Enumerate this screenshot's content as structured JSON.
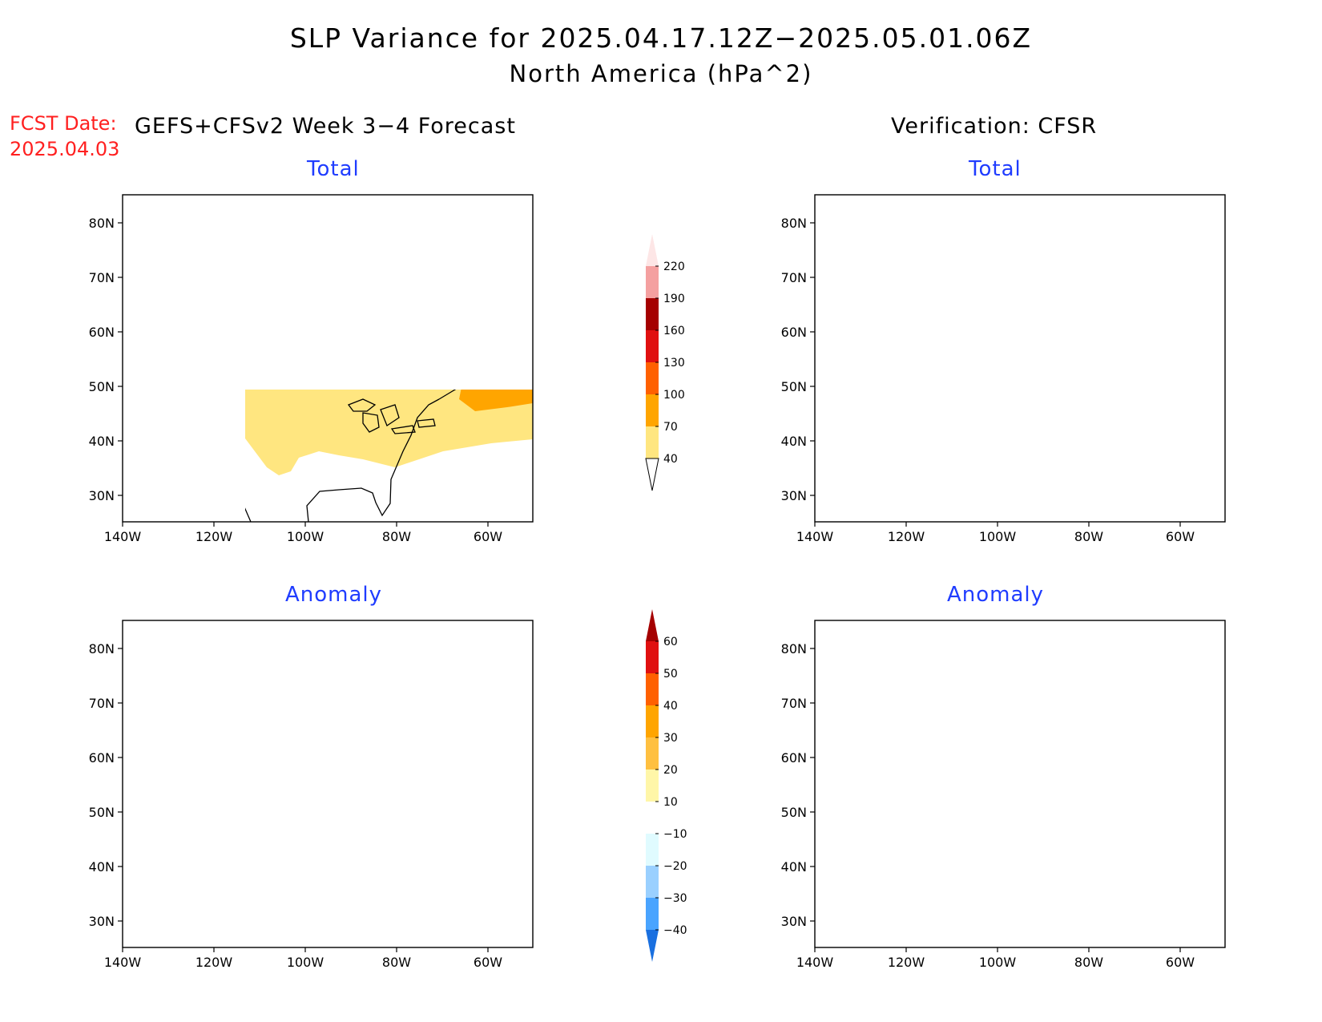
{
  "header": {
    "title": "SLP Variance for 2025.04.17.12Z−2025.05.01.06Z",
    "subtitle": "North America (hPa^2)",
    "fcst_label": "FCST Date:",
    "fcst_date": "2025.04.03",
    "left_heading": "GEFS+CFSv2 Week 3−4 Forecast",
    "right_heading": "Verification: CFSR"
  },
  "panels": {
    "fcst_total": {
      "title": "Total"
    },
    "obs_total": {
      "title": "Total"
    },
    "fcst_anom": {
      "title": "Anomaly"
    },
    "obs_anom": {
      "title": "Anomaly"
    }
  },
  "axes": {
    "lat_labels": [
      "80N",
      "70N",
      "60N",
      "50N",
      "40N",
      "30N"
    ],
    "lon_labels": [
      "140W",
      "120W",
      "100W",
      "80W",
      "60W"
    ]
  },
  "colorbars": {
    "total": {
      "labels": [
        "40",
        "70",
        "100",
        "130",
        "160",
        "190",
        "220"
      ],
      "colors": [
        "#ffe680",
        "#ffa500",
        "#ff6000",
        "#e01010",
        "#a50000",
        "#f4a0a0",
        "#fde6e6"
      ]
    },
    "anomaly": {
      "labels": [
        "60",
        "50",
        "40",
        "30",
        "20",
        "10",
        "−10",
        "−20",
        "−30",
        "−40"
      ],
      "colors": [
        "#a50000",
        "#e01010",
        "#ff6000",
        "#ffa500",
        "#ffc040",
        "#fff6a8",
        "#ffffff",
        "#e0fbff",
        "#9ad0ff",
        "#49a4ff",
        "#1a70e0"
      ]
    }
  }
}
